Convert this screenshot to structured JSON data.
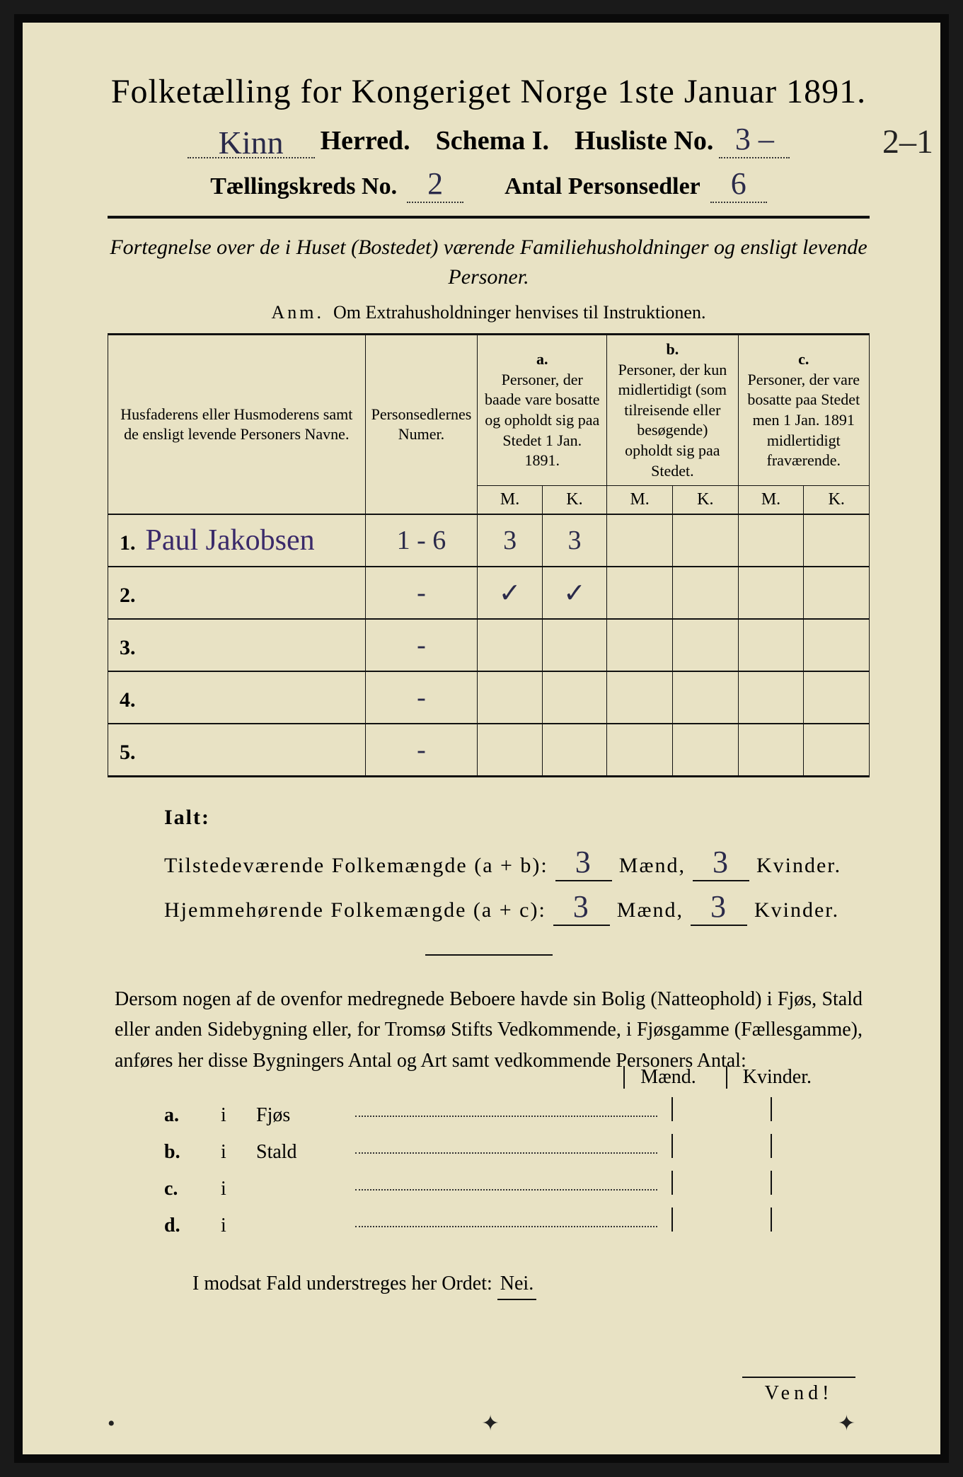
{
  "title": "Folketælling for Kongeriget Norge 1ste Januar 1891.",
  "header": {
    "herred_hand": "Kinn",
    "herred_label": "Herred.",
    "schema_label": "Schema I.",
    "husliste_label": "Husliste No.",
    "husliste_no": "3 –",
    "margin_note": "2–1",
    "kreds_label": "Tællingskreds No.",
    "kreds_no": "2",
    "antal_label": "Antal Personsedler",
    "antal_no": "6"
  },
  "subtitle": "Fortegnelse over de i Huset (Bostedet) værende Familiehusholdninger og ensligt levende Personer.",
  "anm_label": "Anm.",
  "anm_text": "Om Extrahusholdninger henvises til Instruktionen.",
  "table": {
    "col1": "Husfaderens eller Husmoderens samt de ensligt levende Personers Navne.",
    "col2": "Personsedlernes Numer.",
    "col_a_label": "a.",
    "col_a": "Personer, der baade vare bosatte og opholdt sig paa Stedet 1 Jan. 1891.",
    "col_b_label": "b.",
    "col_b": "Personer, der kun midlertidigt (som tilreisende eller besøgende) opholdt sig paa Stedet.",
    "col_c_label": "c.",
    "col_c": "Personer, der vare bosatte paa Stedet men 1 Jan. 1891 midlertidigt fraværende.",
    "m": "M.",
    "k": "K.",
    "rows": [
      {
        "n": "1.",
        "name": "Paul Jakobsen",
        "numer": "1 - 6",
        "a_m": "3",
        "a_k": "3",
        "b_m": "",
        "b_k": "",
        "c_m": "",
        "c_k": ""
      },
      {
        "n": "2.",
        "name": "",
        "numer": "-",
        "a_m": "✓",
        "a_k": "✓",
        "b_m": "",
        "b_k": "",
        "c_m": "",
        "c_k": ""
      },
      {
        "n": "3.",
        "name": "",
        "numer": "-",
        "a_m": "",
        "a_k": "",
        "b_m": "",
        "b_k": "",
        "c_m": "",
        "c_k": ""
      },
      {
        "n": "4.",
        "name": "",
        "numer": "-",
        "a_m": "",
        "a_k": "",
        "b_m": "",
        "b_k": "",
        "c_m": "",
        "c_k": ""
      },
      {
        "n": "5.",
        "name": "",
        "numer": "-",
        "a_m": "",
        "a_k": "",
        "b_m": "",
        "b_k": "",
        "c_m": "",
        "c_k": ""
      }
    ]
  },
  "ialt": {
    "label": "Ialt:",
    "line1_label": "Tilstedeværende Folkemængde (a + b):",
    "line1_m": "3",
    "maend": "Mænd,",
    "line1_k": "3",
    "kvinder": "Kvinder.",
    "line2_label": "Hjemmehørende Folkemængde (a + c):",
    "line2_m": "3",
    "line2_k": "3"
  },
  "para": "Dersom nogen af de ovenfor medregnede Beboere havde sin Bolig (Natteophold) i Fjøs, Stald eller anden Sidebygning eller, for Tromsø Stifts Vedkommende, i Fjøsgamme (Fællesgamme), anføres her disse Bygningers Antal og Art samt vedkommende Personers Antal:",
  "mk": {
    "m": "Mænd.",
    "k": "Kvinder."
  },
  "buildings": [
    {
      "l": "a.",
      "i": "i",
      "name": "Fjøs"
    },
    {
      "l": "b.",
      "i": "i",
      "name": "Stald"
    },
    {
      "l": "c.",
      "i": "i",
      "name": ""
    },
    {
      "l": "d.",
      "i": "i",
      "name": ""
    }
  ],
  "nei_line_pre": "I modsat Fald understreges her Ordet:",
  "nei": "Nei.",
  "vend": "Vend!"
}
